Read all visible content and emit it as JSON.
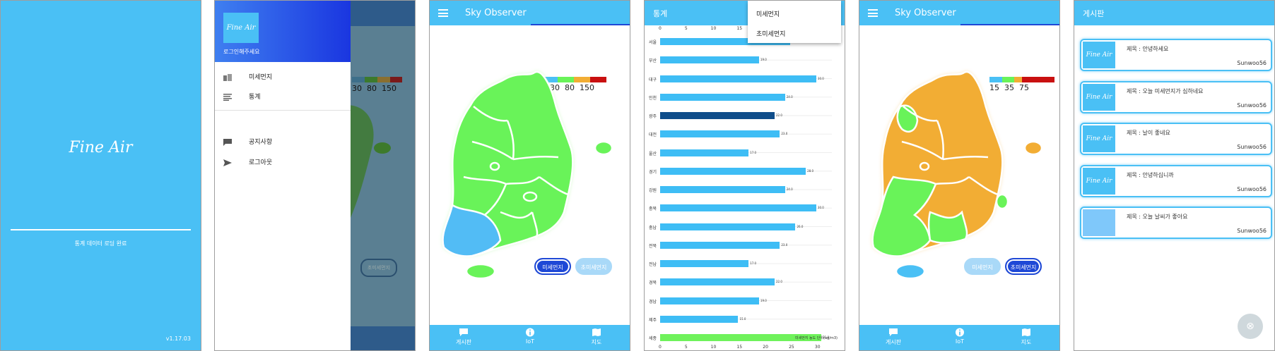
{
  "splash": {
    "app_name": "Fine Air",
    "status": "통계 데이터 로딩 완료",
    "version": "v1.17.03"
  },
  "drawer": {
    "logo_text": "Fine Air",
    "subtitle": "로그인해주세요",
    "items": [
      {
        "icon": "map-icon",
        "label": "미세먼지"
      },
      {
        "icon": "list-icon",
        "label": "통계"
      },
      {
        "icon": "chat-icon",
        "label": "공지사항"
      },
      {
        "icon": "send-icon",
        "label": "로그아웃"
      }
    ],
    "background_legend": [
      "30",
      "80",
      "150"
    ],
    "background_toggle": "초미세먼지"
  },
  "map_pm10": {
    "title": "Sky Observer",
    "legend": {
      "values": [
        "30",
        "80",
        "150"
      ],
      "colors": [
        "#4ac0f5",
        "#69f359",
        "#f2ad34",
        "#c91010"
      ]
    },
    "toggle_on": "미세먼지",
    "toggle_off": "초미세먼지",
    "nav": [
      {
        "icon": "chat-icon",
        "label": "게시판"
      },
      {
        "icon": "info-icon",
        "label": "IoT"
      },
      {
        "icon": "map-icon",
        "label": "지도"
      }
    ]
  },
  "stats": {
    "title": "통계",
    "dropdown": [
      "미세먼지",
      "초미세먼지"
    ],
    "unit_note": "미세먼지 농도 단위(ug/m3)",
    "chart_data": {
      "type": "bar",
      "orientation": "horizontal",
      "categories": [
        "서울",
        "부산",
        "대구",
        "인천",
        "광주",
        "대전",
        "울산",
        "경기",
        "강원",
        "충북",
        "충남",
        "전북",
        "전남",
        "경북",
        "경남",
        "제주",
        "세종"
      ],
      "values": [
        25,
        19,
        30,
        24,
        22,
        23,
        17,
        28,
        24,
        30,
        26,
        23,
        17,
        22,
        19,
        15,
        31
      ],
      "value_labels": [
        "25.0",
        "19.0",
        "30.0",
        "24.0",
        "22.0",
        "23.0",
        "17.0",
        "28.0",
        "24.0",
        "30.0",
        "26.0",
        "23.0",
        "17.0",
        "22.0",
        "19.0",
        "15.0",
        "31.0"
      ],
      "highlight_index": 4,
      "highlight_index_green": 16,
      "xlim": [
        0,
        33
      ],
      "xticks": [
        "0",
        "5",
        "10",
        "15",
        "20",
        "25",
        "30"
      ],
      "colors": {
        "default": "#3ebdf5",
        "highlight": "#0f4d8a",
        "last": "#6ff25b"
      }
    }
  },
  "map_pm25": {
    "title": "Sky Observer",
    "legend": {
      "values": [
        "15",
        "35",
        "75"
      ],
      "colors": [
        "#4ac0f5",
        "#69f359",
        "#f2ad34",
        "#c91010"
      ]
    },
    "toggle_off": "미세먼지",
    "toggle_on": "초미세먼지",
    "nav": [
      {
        "icon": "chat-icon",
        "label": "게시판"
      },
      {
        "icon": "info-icon",
        "label": "IoT"
      },
      {
        "icon": "map-icon",
        "label": "지도"
      }
    ]
  },
  "board": {
    "title": "게시판",
    "posts": [
      {
        "logo": "Fine Air",
        "title": "제목 : 안녕하세요",
        "author": "Sunwoo56"
      },
      {
        "logo": "Fine Air",
        "title": "제목 : 오늘 미세먼지가 심하네요",
        "author": "Sunwoo56"
      },
      {
        "logo": "Fine Air",
        "title": "제목 : 날이 좋네요",
        "author": "Sunwoo56"
      },
      {
        "logo": "Fine Air",
        "title": "제목 : 안녕하십니까",
        "author": "Sunwoo56"
      },
      {
        "logo": "",
        "title": "제목 : 오늘 날씨가 좋아요",
        "author": "Sunwoo56"
      }
    ],
    "fab_icon": "add-icon"
  }
}
